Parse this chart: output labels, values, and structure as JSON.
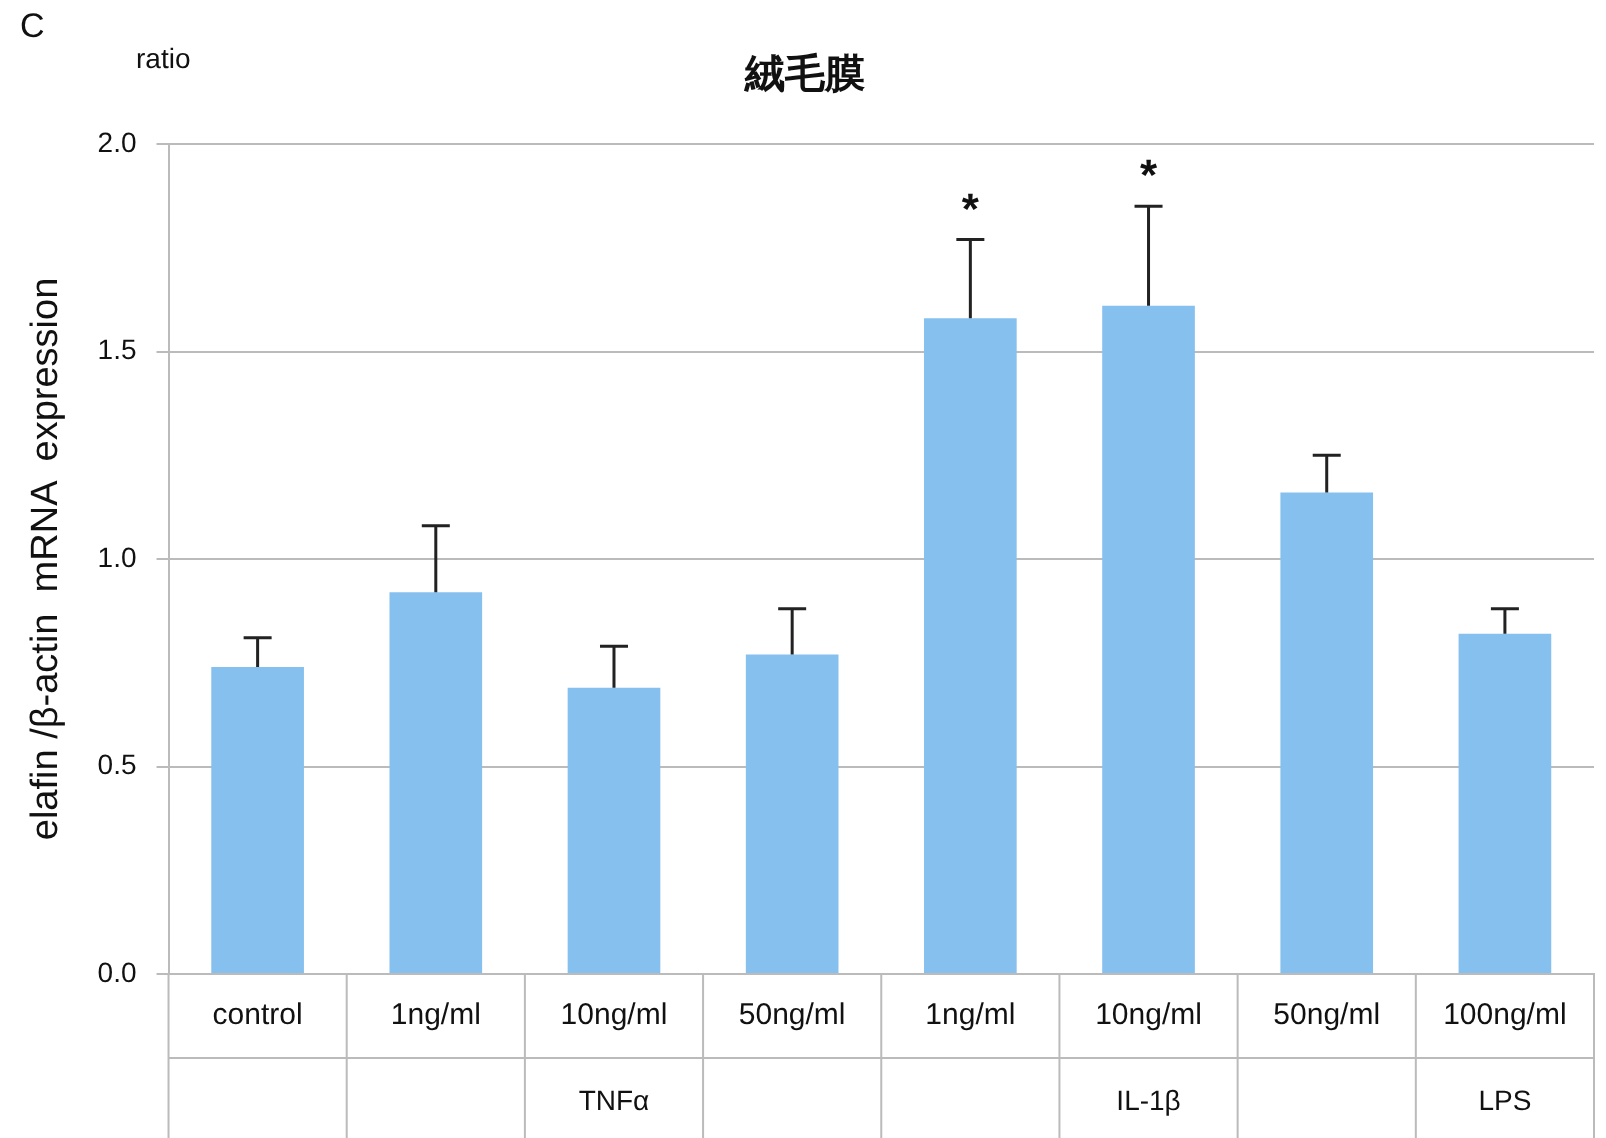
{
  "chart_data": {
    "type": "bar",
    "title": "絨毛膜",
    "ylabel": "elafin /β-actin  mRNA  expression",
    "categories": [
      "control",
      "1ng/ml",
      "10ng/ml",
      "50ng/ml",
      "1ng/ml",
      "10ng/ml",
      "50ng/ml",
      "100ng/ml"
    ],
    "values": [
      0.74,
      0.92,
      0.69,
      0.77,
      1.58,
      1.61,
      1.16,
      0.82
    ],
    "errors": [
      [
        0.74,
        0.81
      ],
      [
        0.92,
        1.08
      ],
      [
        0.69,
        0.79
      ],
      [
        0.77,
        0.88
      ],
      [
        1.58,
        1.77
      ],
      [
        1.61,
        1.85
      ],
      [
        1.16,
        1.25
      ],
      [
        0.82,
        0.88
      ]
    ],
    "color": "#86c0ef",
    "ylim": [
      0,
      2
    ],
    "yticks": [
      {
        "value": 0,
        "label": "0.0"
      },
      {
        "value": 0.5,
        "label": "0.5"
      },
      {
        "value": 1,
        "label": "1.0"
      },
      {
        "value": 1.5,
        "label": "1.5"
      },
      {
        "value": 2,
        "label": "2.0"
      }
    ],
    "grid": "y",
    "annotations": [
      "C",
      "ratio",
      "*",
      "*",
      "TNFα",
      "IL-1β",
      "LPS"
    ]
  }
}
